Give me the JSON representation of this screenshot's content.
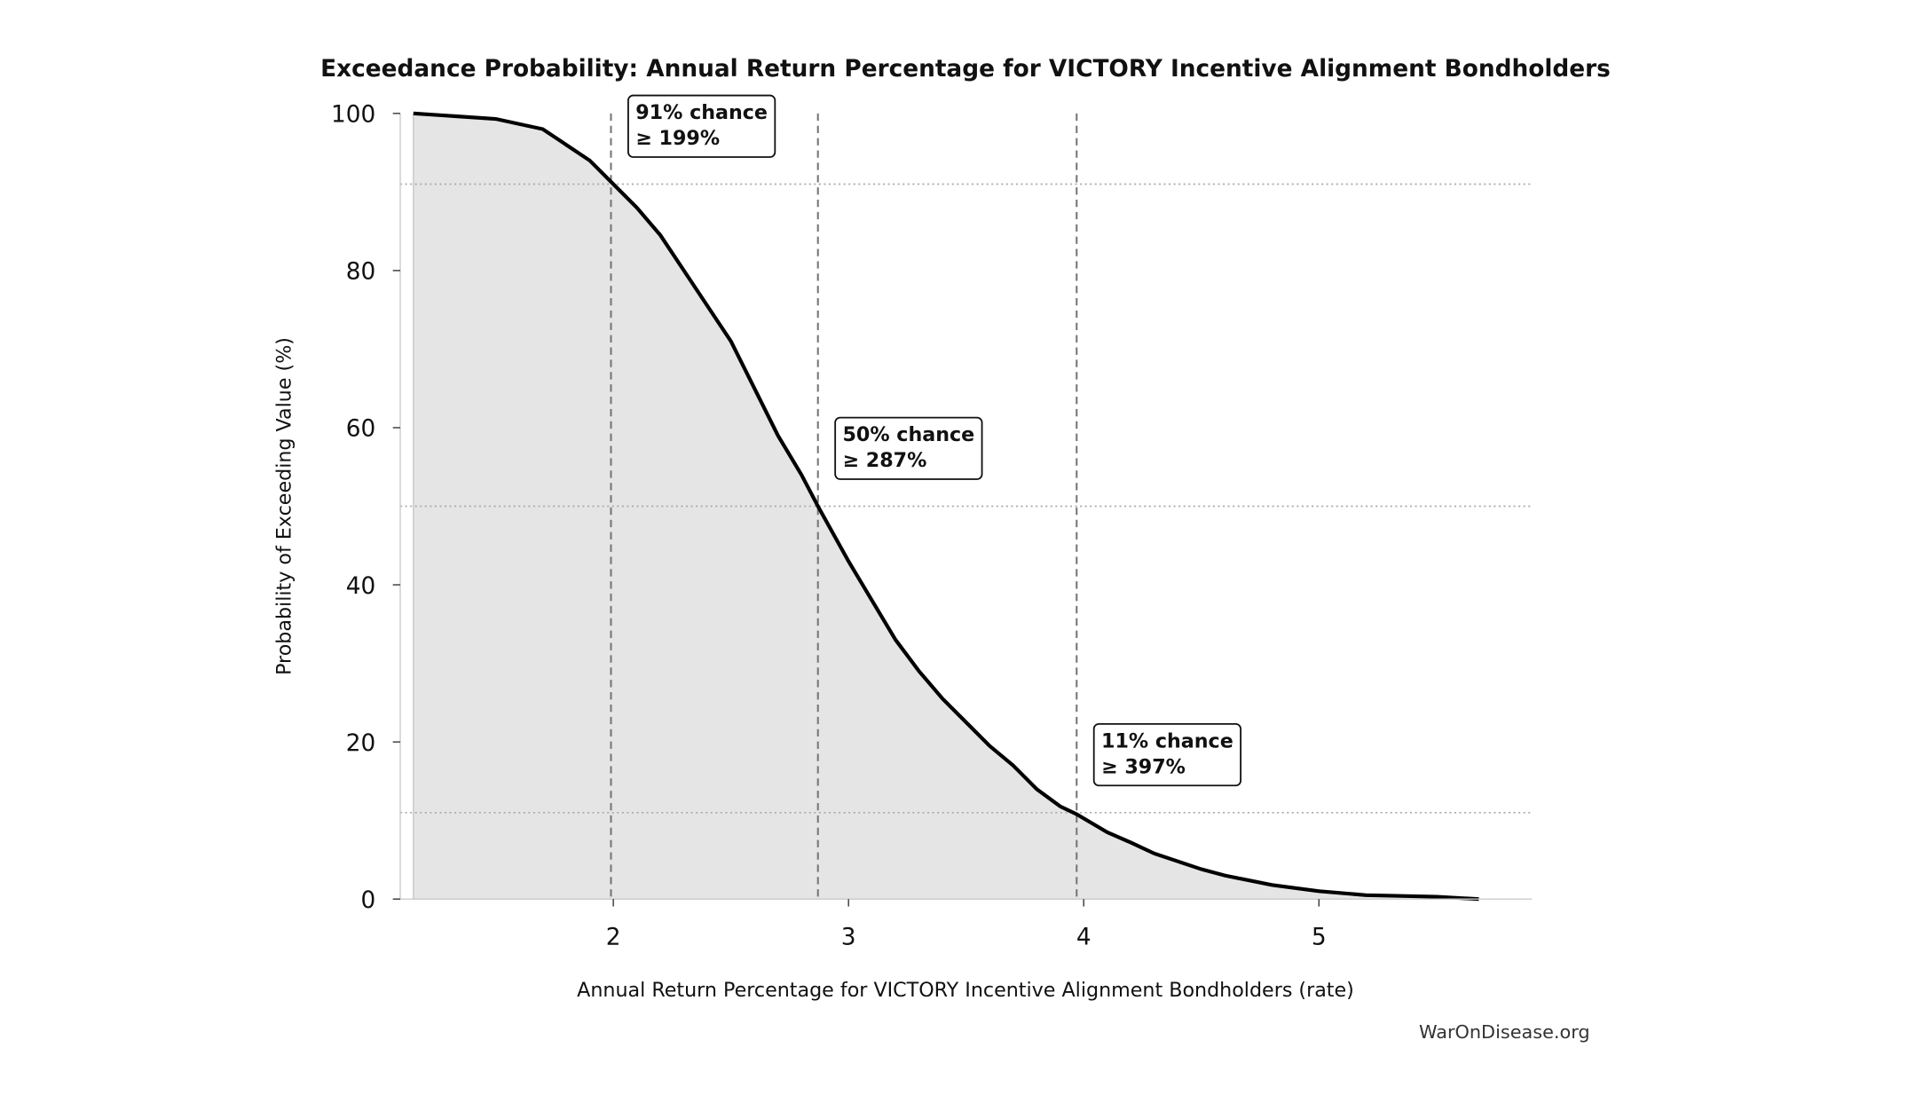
{
  "chart_data": {
    "type": "line",
    "title": "Exceedance Probability: Annual Return Percentage for VICTORY Incentive Alignment Bondholders",
    "x_label": "Annual Return Percentage for VICTORY Incentive Alignment Bondholders (rate)",
    "y_label": "Probability of Exceeding Value (%)",
    "source": "WarOnDisease.org",
    "x": [
      1.15,
      1.5,
      1.7,
      1.8,
      1.9,
      2.0,
      2.1,
      2.2,
      2.3,
      2.4,
      2.5,
      2.6,
      2.7,
      2.8,
      2.87,
      3.0,
      3.1,
      3.2,
      3.3,
      3.4,
      3.5,
      3.6,
      3.7,
      3.8,
      3.9,
      3.97,
      4.1,
      4.2,
      4.3,
      4.4,
      4.5,
      4.6,
      4.8,
      5.0,
      5.2,
      5.5,
      5.68
    ],
    "values": [
      100,
      99.3,
      98,
      96,
      94,
      91,
      88,
      84.5,
      80,
      75.5,
      71,
      65,
      59,
      54,
      50,
      43,
      38,
      33,
      29,
      25.5,
      22.5,
      19.5,
      17,
      14,
      11.8,
      10.8,
      8.5,
      7.2,
      5.8,
      4.8,
      3.8,
      3,
      1.8,
      1.0,
      0.5,
      0.3,
      0
    ],
    "color": "#000000",
    "fill_color": "#e5e5e5",
    "xlim": [
      1.094,
      5.906
    ],
    "ylim": [
      0,
      100
    ],
    "xticks": [
      2,
      3,
      4,
      5
    ],
    "yticks": [
      0,
      20,
      40,
      60,
      80,
      100
    ],
    "reference_lines": [
      {
        "x": 1.99,
        "y": 91,
        "label": [
          "91% chance",
          "≥ 199%"
        ]
      },
      {
        "x": 2.87,
        "y": 50,
        "label": [
          "50% chance",
          "≥ 287%"
        ]
      },
      {
        "x": 3.97,
        "y": 11,
        "label": [
          "11% chance",
          "≥ 397%"
        ]
      }
    ]
  }
}
